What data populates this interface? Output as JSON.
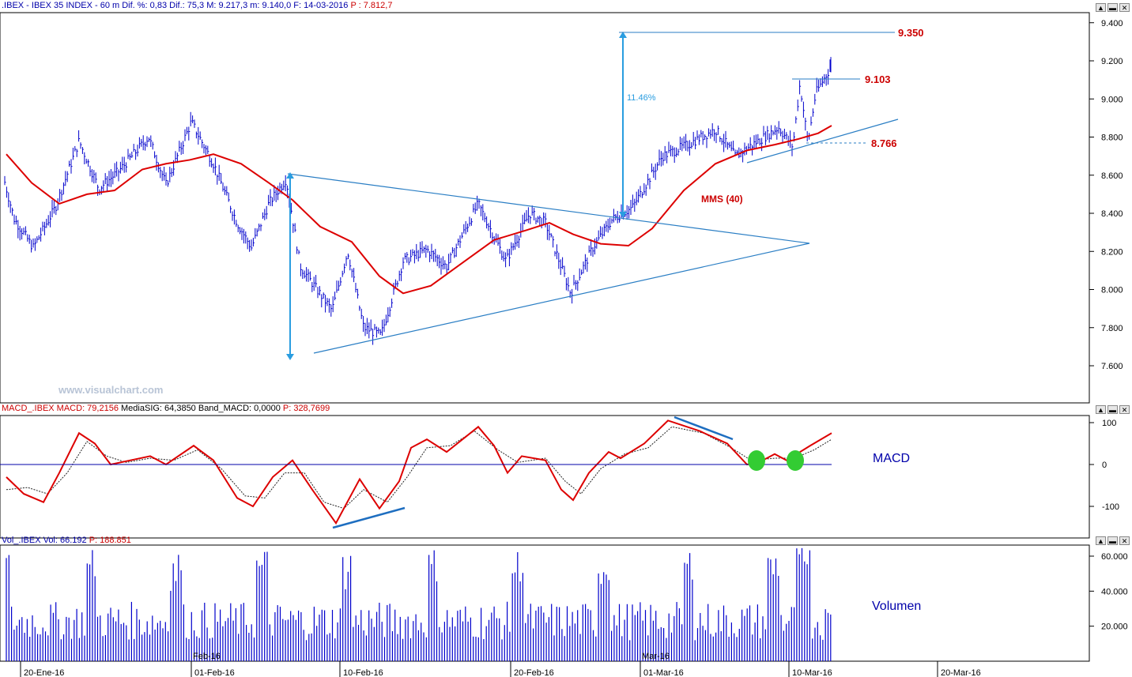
{
  "chart_data": [
    {
      "type": "candlestick",
      "header": {
        "text_main": ".IBEX - IBEX 35 INDEX -  60 m  Dif. %: 0,83  Dif.: 75,3  M: 9.217,3  m: 9.140,0  F: 14-03-2016 ",
        "text_price": "P : 7.812,7"
      },
      "y_ticks": [
        "9.400",
        "9.200",
        "9.000",
        "8.800",
        "8.600",
        "8.400",
        "8.200",
        "8.000",
        "7.800",
        "7.600"
      ],
      "ylim": [
        7.56,
        9.42
      ],
      "annotations": {
        "target": "9.350",
        "resistance": "9.103",
        "support": "8.766",
        "pct": "11.46%",
        "ma_label": "MMS (40)",
        "watermark": "www.visualchart.com"
      },
      "key_points": [
        {
          "x": 0,
          "y": 8.66
        },
        {
          "x": 18,
          "y": 8.37
        },
        {
          "x": 42,
          "y": 8.22
        },
        {
          "x": 70,
          "y": 8.43
        },
        {
          "x": 100,
          "y": 8.78
        },
        {
          "x": 125,
          "y": 8.53
        },
        {
          "x": 150,
          "y": 8.62
        },
        {
          "x": 188,
          "y": 8.8
        },
        {
          "x": 210,
          "y": 8.55
        },
        {
          "x": 242,
          "y": 8.88
        },
        {
          "x": 270,
          "y": 8.66
        },
        {
          "x": 300,
          "y": 8.35
        },
        {
          "x": 318,
          "y": 8.22
        },
        {
          "x": 340,
          "y": 8.45
        },
        {
          "x": 362,
          "y": 8.58
        },
        {
          "x": 380,
          "y": 8.12
        },
        {
          "x": 420,
          "y": 7.89
        },
        {
          "x": 440,
          "y": 8.2
        },
        {
          "x": 460,
          "y": 7.8
        },
        {
          "x": 482,
          "y": 7.76
        },
        {
          "x": 510,
          "y": 8.15
        },
        {
          "x": 540,
          "y": 8.21
        },
        {
          "x": 565,
          "y": 8.12
        },
        {
          "x": 605,
          "y": 8.45
        },
        {
          "x": 640,
          "y": 8.15
        },
        {
          "x": 670,
          "y": 8.4
        },
        {
          "x": 690,
          "y": 8.35
        },
        {
          "x": 722,
          "y": 7.98
        },
        {
          "x": 750,
          "y": 8.22
        },
        {
          "x": 775,
          "y": 8.37
        },
        {
          "x": 800,
          "y": 8.43
        },
        {
          "x": 838,
          "y": 8.7
        },
        {
          "x": 870,
          "y": 8.76
        },
        {
          "x": 905,
          "y": 8.84
        },
        {
          "x": 930,
          "y": 8.7
        },
        {
          "x": 985,
          "y": 8.85
        },
        {
          "x": 1003,
          "y": 8.75
        },
        {
          "x": 1012,
          "y": 9.08
        },
        {
          "x": 1022,
          "y": 8.77
        },
        {
          "x": 1032,
          "y": 9.03
        },
        {
          "x": 1050,
          "y": 9.16
        }
      ],
      "ma40": [
        {
          "x": 8,
          "y": 8.71
        },
        {
          "x": 40,
          "y": 8.56
        },
        {
          "x": 75,
          "y": 8.45
        },
        {
          "x": 110,
          "y": 8.5
        },
        {
          "x": 145,
          "y": 8.52
        },
        {
          "x": 180,
          "y": 8.63
        },
        {
          "x": 210,
          "y": 8.66
        },
        {
          "x": 240,
          "y": 8.68
        },
        {
          "x": 270,
          "y": 8.71
        },
        {
          "x": 305,
          "y": 8.66
        },
        {
          "x": 340,
          "y": 8.56
        },
        {
          "x": 370,
          "y": 8.47
        },
        {
          "x": 405,
          "y": 8.33
        },
        {
          "x": 445,
          "y": 8.25
        },
        {
          "x": 480,
          "y": 8.07
        },
        {
          "x": 510,
          "y": 7.98
        },
        {
          "x": 545,
          "y": 8.02
        },
        {
          "x": 585,
          "y": 8.14
        },
        {
          "x": 625,
          "y": 8.26
        },
        {
          "x": 665,
          "y": 8.31
        },
        {
          "x": 695,
          "y": 8.35
        },
        {
          "x": 725,
          "y": 8.29
        },
        {
          "x": 760,
          "y": 8.24
        },
        {
          "x": 795,
          "y": 8.23
        },
        {
          "x": 825,
          "y": 8.32
        },
        {
          "x": 865,
          "y": 8.52
        },
        {
          "x": 905,
          "y": 8.66
        },
        {
          "x": 945,
          "y": 8.73
        },
        {
          "x": 980,
          "y": 8.76
        },
        {
          "x": 1010,
          "y": 8.79
        },
        {
          "x": 1035,
          "y": 8.82
        },
        {
          "x": 1052,
          "y": 8.86
        }
      ]
    },
    {
      "type": "line",
      "header": {
        "text_main": "MACD_.IBEX MACD: 79,2156 ",
        "text_sig": "MediaSIG: 64,3850  Band_MACD: 0,0000 ",
        "text_price": "P: 328,7699"
      },
      "label": "MACD",
      "y_ticks": [
        "100",
        "0",
        "-100"
      ],
      "ylim": [
        -160,
        100
      ],
      "series": [
        {
          "name": "MACD",
          "values": [
            {
              "x": 8,
              "y": -30
            },
            {
              "x": 30,
              "y": -70
            },
            {
              "x": 55,
              "y": -90
            },
            {
              "x": 75,
              "y": -20
            },
            {
              "x": 100,
              "y": 75
            },
            {
              "x": 120,
              "y": 50
            },
            {
              "x": 140,
              "y": 0
            },
            {
              "x": 165,
              "y": 10
            },
            {
              "x": 190,
              "y": 20
            },
            {
              "x": 210,
              "y": 0
            },
            {
              "x": 245,
              "y": 45
            },
            {
              "x": 270,
              "y": 10
            },
            {
              "x": 300,
              "y": -80
            },
            {
              "x": 320,
              "y": -100
            },
            {
              "x": 345,
              "y": -30
            },
            {
              "x": 370,
              "y": 10
            },
            {
              "x": 395,
              "y": -60
            },
            {
              "x": 425,
              "y": -140
            },
            {
              "x": 455,
              "y": -35
            },
            {
              "x": 480,
              "y": -105
            },
            {
              "x": 505,
              "y": -40
            },
            {
              "x": 520,
              "y": 40
            },
            {
              "x": 540,
              "y": 60
            },
            {
              "x": 565,
              "y": 30
            },
            {
              "x": 605,
              "y": 90
            },
            {
              "x": 625,
              "y": 45
            },
            {
              "x": 642,
              "y": -20
            },
            {
              "x": 660,
              "y": 20
            },
            {
              "x": 690,
              "y": 10
            },
            {
              "x": 710,
              "y": -60
            },
            {
              "x": 725,
              "y": -85
            },
            {
              "x": 745,
              "y": -20
            },
            {
              "x": 770,
              "y": 30
            },
            {
              "x": 785,
              "y": 15
            },
            {
              "x": 815,
              "y": 50
            },
            {
              "x": 845,
              "y": 105
            },
            {
              "x": 885,
              "y": 80
            },
            {
              "x": 920,
              "y": 50
            },
            {
              "x": 945,
              "y": 0
            },
            {
              "x": 960,
              "y": 5
            },
            {
              "x": 980,
              "y": 25
            },
            {
              "x": 1000,
              "y": 5
            },
            {
              "x": 1012,
              "y": 30
            },
            {
              "x": 1025,
              "y": 45
            },
            {
              "x": 1052,
              "y": 75
            }
          ]
        },
        {
          "name": "MediaSIG",
          "values": [
            {
              "x": 8,
              "y": -60
            },
            {
              "x": 35,
              "y": -55
            },
            {
              "x": 60,
              "y": -70
            },
            {
              "x": 85,
              "y": -20
            },
            {
              "x": 110,
              "y": 55
            },
            {
              "x": 135,
              "y": 20
            },
            {
              "x": 160,
              "y": 5
            },
            {
              "x": 190,
              "y": 15
            },
            {
              "x": 220,
              "y": 10
            },
            {
              "x": 250,
              "y": 35
            },
            {
              "x": 280,
              "y": -10
            },
            {
              "x": 310,
              "y": -75
            },
            {
              "x": 335,
              "y": -80
            },
            {
              "x": 360,
              "y": -20
            },
            {
              "x": 385,
              "y": -20
            },
            {
              "x": 410,
              "y": -90
            },
            {
              "x": 435,
              "y": -105
            },
            {
              "x": 460,
              "y": -60
            },
            {
              "x": 490,
              "y": -90
            },
            {
              "x": 515,
              "y": -30
            },
            {
              "x": 540,
              "y": 40
            },
            {
              "x": 570,
              "y": 45
            },
            {
              "x": 600,
              "y": 80
            },
            {
              "x": 630,
              "y": 35
            },
            {
              "x": 655,
              "y": 5
            },
            {
              "x": 690,
              "y": 15
            },
            {
              "x": 715,
              "y": -40
            },
            {
              "x": 735,
              "y": -70
            },
            {
              "x": 760,
              "y": -10
            },
            {
              "x": 790,
              "y": 25
            },
            {
              "x": 820,
              "y": 40
            },
            {
              "x": 850,
              "y": 90
            },
            {
              "x": 890,
              "y": 75
            },
            {
              "x": 925,
              "y": 40
            },
            {
              "x": 950,
              "y": 10
            },
            {
              "x": 980,
              "y": 15
            },
            {
              "x": 1005,
              "y": 15
            },
            {
              "x": 1030,
              "y": 35
            },
            {
              "x": 1052,
              "y": 60
            }
          ]
        }
      ]
    },
    {
      "type": "bar",
      "header": {
        "text_main": "Vol_.IBEX Vol: 66.192 ",
        "text_price": "P: 188.851"
      },
      "label": "Volumen",
      "y_ticks": [
        "60.000",
        "40.000",
        "20.000"
      ],
      "ylim": [
        0,
        68000
      ]
    }
  ],
  "x_axis": {
    "labels": [
      "20-Ene-16",
      "01-Feb-16",
      "10-Feb-16",
      "20-Feb-16",
      "01-Mar-16",
      "10-Mar-16",
      "20-Mar-16"
    ],
    "month_labels": [
      "Feb-16",
      "Mar-16"
    ]
  },
  "colors": {
    "price": "#0000cc",
    "ma": "#dd0000",
    "trend": "#2a7ec4",
    "signal": "#222222",
    "highlight": "#33cc33"
  },
  "buttons": {
    "up": "▲",
    "minus": "▬",
    "close": "✕"
  }
}
